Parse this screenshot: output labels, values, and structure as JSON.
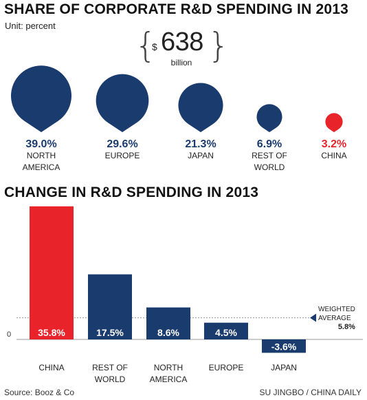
{
  "share_chart": {
    "title": "SHARE OF CORPORATE R&D SPENDING IN 2013",
    "unit_label": "Unit: percent",
    "total": {
      "currency": "$",
      "amount": "638",
      "unit": "billion"
    },
    "colors": {
      "default": "#1a3b6e",
      "highlight": "#e8232a"
    }
  },
  "change_chart": {
    "title": "CHANGE IN R&D SPENDING IN 2013",
    "zero_label": "0",
    "weighted_average": {
      "label_line1": "WEIGHTED",
      "label_line2": "AVERAGE",
      "value_label": "5.8%"
    },
    "colors": {
      "default": "#1a3b6e",
      "highlight": "#e8232a"
    }
  },
  "footer": {
    "source": "Source: Booz & Co",
    "credit": "SU JINGBO / CHINA DAILY"
  },
  "chart_data": [
    {
      "type": "bubble",
      "title": "SHARE OF CORPORATE R&D SPENDING IN 2013",
      "subtitle": "Unit: percent",
      "categories": [
        "NORTH AMERICA",
        "EUROPE",
        "JAPAN",
        "REST OF WORLD",
        "CHINA"
      ],
      "values": [
        39.0,
        29.6,
        21.3,
        6.9,
        3.2
      ],
      "value_labels": [
        "39.0%",
        "29.6%",
        "21.3%",
        "6.9%",
        "3.2%"
      ],
      "highlight": "CHINA",
      "annotation": "$638 billion"
    },
    {
      "type": "bar",
      "title": "CHANGE IN R&D SPENDING IN 2013",
      "categories": [
        "CHINA",
        "REST OF WORLD",
        "NORTH AMERICA",
        "EUROPE",
        "JAPAN"
      ],
      "values": [
        35.8,
        17.5,
        8.6,
        4.5,
        -3.6
      ],
      "value_labels": [
        "35.8%",
        "17.5%",
        "8.6%",
        "4.5%",
        "-3.6%"
      ],
      "highlight": "CHINA",
      "reference_line": {
        "label": "WEIGHTED AVERAGE",
        "value": 5.8
      },
      "ylim": [
        -4.5,
        36
      ]
    }
  ]
}
